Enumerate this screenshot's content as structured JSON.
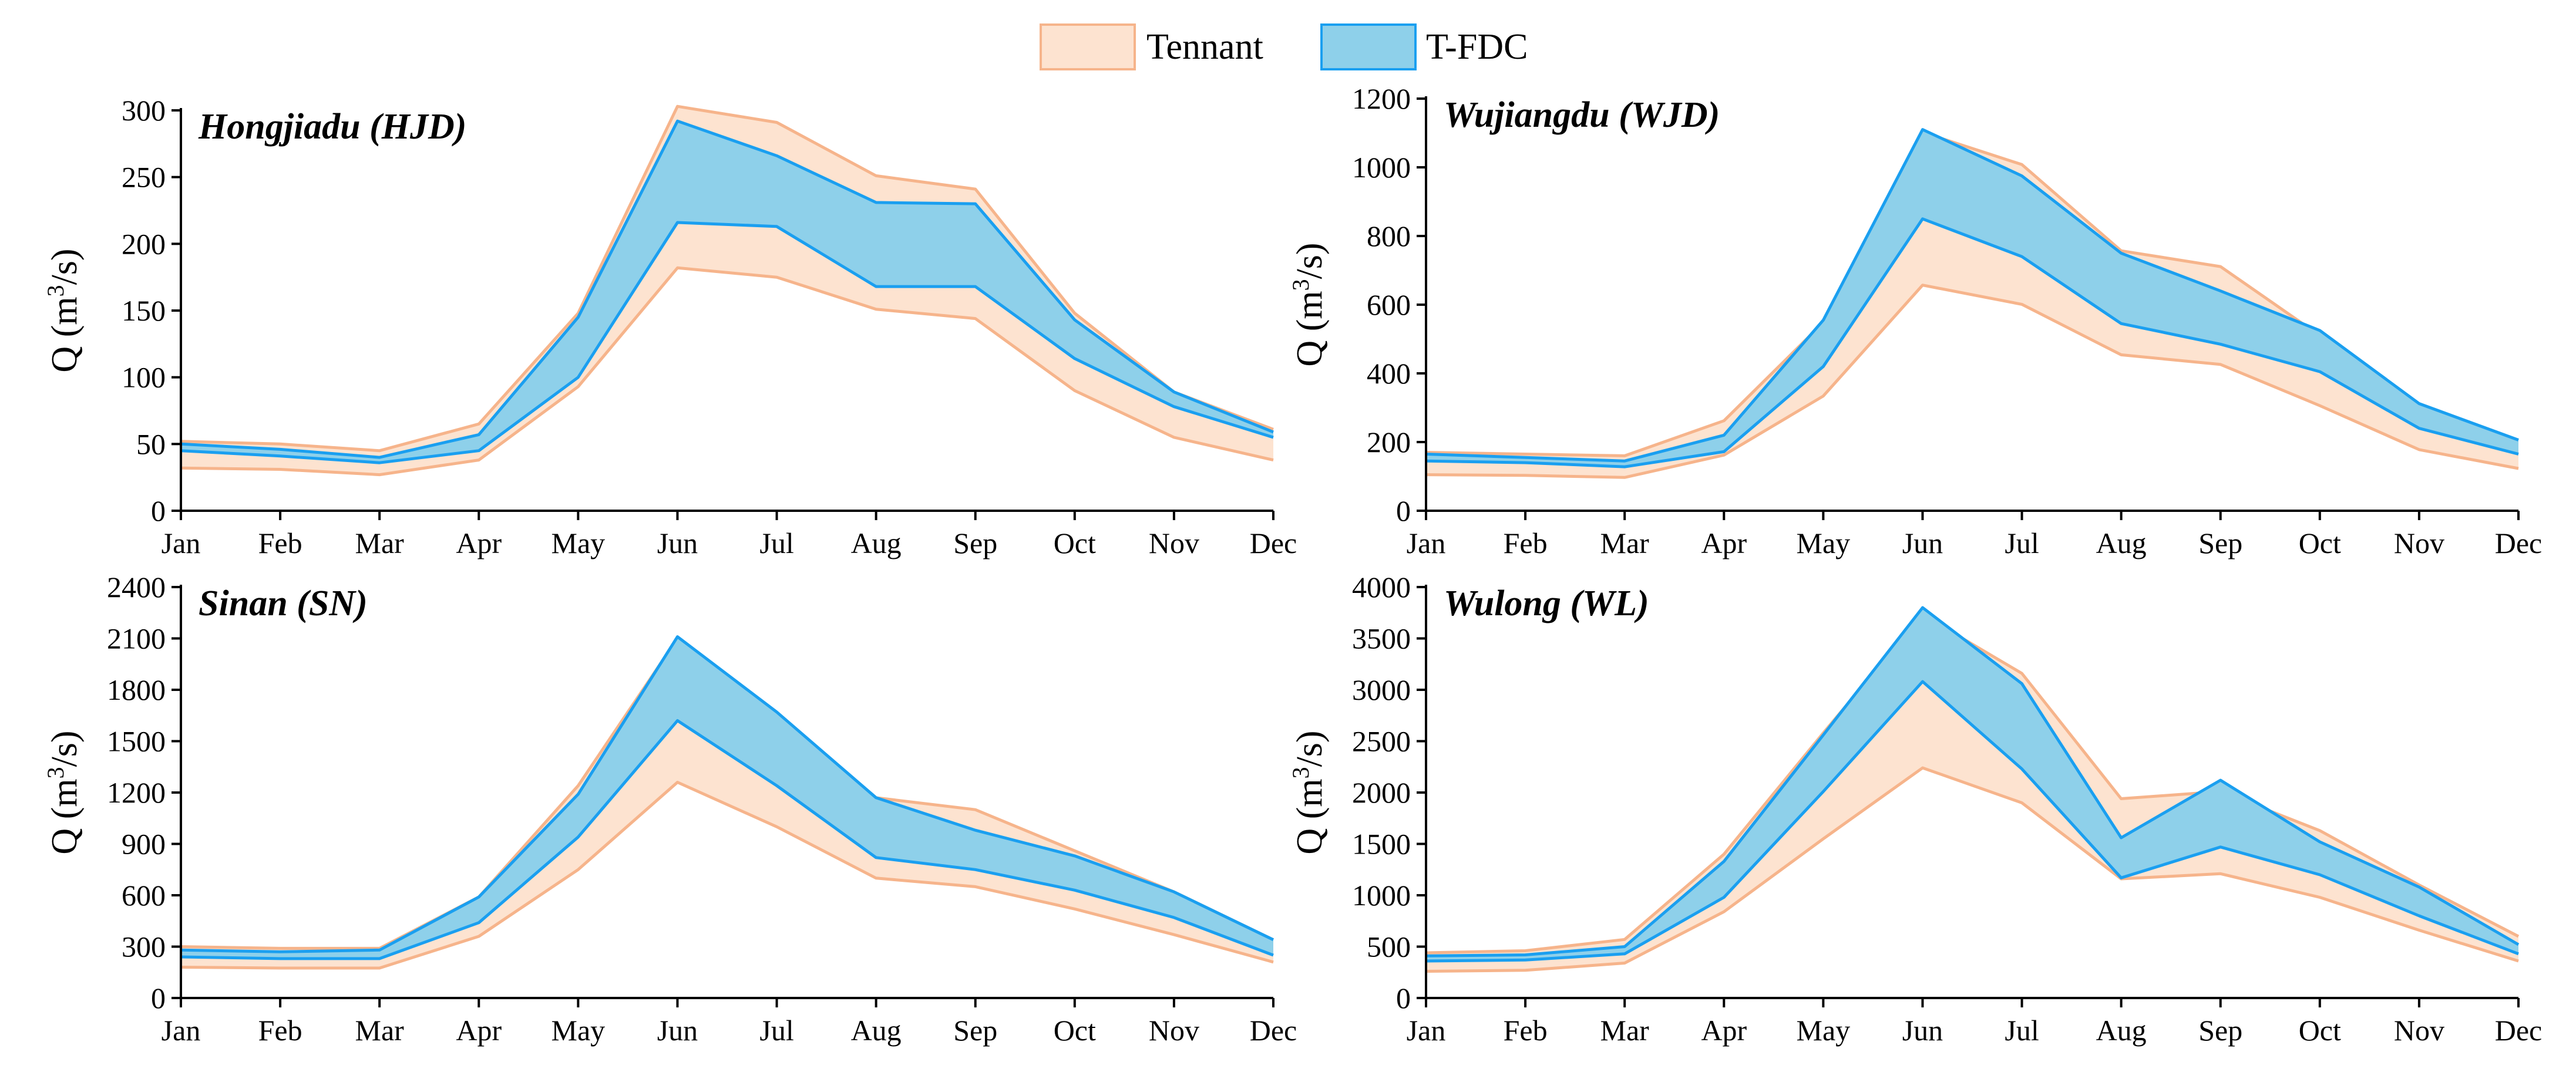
{
  "legend": {
    "items": [
      {
        "label": "Tennant",
        "fill": "#fde3d0",
        "stroke": "#f6b48b"
      },
      {
        "label": "T-FDC",
        "fill": "#8ed0ea",
        "stroke": "#1a9ff0"
      }
    ]
  },
  "chart_data": [
    {
      "type": "area",
      "title": "Hongjiadu (HJD)",
      "ylabel": "Q (m3/s)",
      "ylim": [
        0,
        300
      ],
      "yticks": [
        0,
        50,
        100,
        150,
        200,
        250,
        300
      ],
      "categories": [
        "Jan",
        "Feb",
        "Mar",
        "Apr",
        "May",
        "Jun",
        "Jul",
        "Aug",
        "Sep",
        "Oct",
        "Nov",
        "Dec"
      ],
      "series": [
        {
          "name": "Tennant",
          "lower": [
            32,
            31,
            27,
            38,
            93,
            182,
            175,
            151,
            144,
            90,
            55,
            38
          ],
          "upper": [
            52,
            50,
            45,
            65,
            148,
            303,
            291,
            251,
            241,
            148,
            89,
            61
          ]
        },
        {
          "name": "T-FDC",
          "lower": [
            45,
            41,
            36,
            45,
            100,
            216,
            213,
            168,
            168,
            114,
            78,
            55
          ],
          "upper": [
            50,
            46,
            40,
            57,
            145,
            292,
            266,
            231,
            230,
            143,
            89,
            59
          ]
        }
      ]
    },
    {
      "type": "area",
      "title": "Wujiangdu (WJD)",
      "ylabel": "Q (m3/s)",
      "ylim": [
        0,
        1200
      ],
      "yticks": [
        0,
        200,
        400,
        600,
        800,
        1000,
        1200
      ],
      "categories": [
        "Jan",
        "Feb",
        "Mar",
        "Apr",
        "May",
        "Jun",
        "Jul",
        "Aug",
        "Sep",
        "Oct",
        "Nov",
        "Dec"
      ],
      "series": [
        {
          "name": "Tennant",
          "lower": [
            105,
            103,
            97,
            162,
            334,
            657,
            601,
            454,
            426,
            306,
            178,
            123
          ],
          "upper": [
            170,
            165,
            160,
            262,
            548,
            1102,
            1008,
            757,
            711,
            510,
            297,
            206
          ]
        },
        {
          "name": "T-FDC",
          "lower": [
            145,
            140,
            128,
            172,
            420,
            850,
            740,
            545,
            485,
            405,
            240,
            165
          ],
          "upper": [
            165,
            155,
            145,
            220,
            555,
            1110,
            975,
            750,
            640,
            525,
            312,
            206
          ]
        }
      ]
    },
    {
      "type": "area",
      "title": "Sinan (SN)",
      "ylabel": "Q (m3/s)",
      "ylim": [
        0,
        2400
      ],
      "yticks": [
        0,
        300,
        600,
        900,
        1200,
        1500,
        1800,
        2100,
        2400
      ],
      "categories": [
        "Jan",
        "Feb",
        "Mar",
        "Apr",
        "May",
        "Jun",
        "Jul",
        "Aug",
        "Sep",
        "Oct",
        "Nov",
        "Dec"
      ],
      "series": [
        {
          "name": "Tennant",
          "lower": [
            180,
            175,
            175,
            360,
            750,
            1260,
            1000,
            700,
            650,
            520,
            370,
            210
          ],
          "upper": [
            300,
            290,
            290,
            590,
            1240,
            2100,
            1660,
            1170,
            1100,
            860,
            620,
            340
          ]
        },
        {
          "name": "T-FDC",
          "lower": [
            240,
            230,
            230,
            440,
            940,
            1620,
            1240,
            820,
            750,
            630,
            470,
            250
          ],
          "upper": [
            280,
            270,
            280,
            590,
            1190,
            2110,
            1670,
            1170,
            980,
            830,
            620,
            340
          ]
        }
      ]
    },
    {
      "type": "area",
      "title": "Wulong (WL)",
      "ylabel": "Q (m3/s)",
      "ylim": [
        0,
        4000
      ],
      "yticks": [
        0,
        500,
        1000,
        1500,
        2000,
        2500,
        3000,
        3500,
        4000
      ],
      "categories": [
        "Jan",
        "Feb",
        "Mar",
        "Apr",
        "May",
        "Jun",
        "Jul",
        "Aug",
        "Sep",
        "Oct",
        "Nov",
        "Dec"
      ],
      "series": [
        {
          "name": "Tennant",
          "lower": [
            260,
            270,
            340,
            840,
            1550,
            2240,
            1900,
            1160,
            1210,
            980,
            660,
            360
          ],
          "upper": [
            440,
            460,
            570,
            1400,
            2580,
            3730,
            3160,
            1940,
            2010,
            1630,
            1100,
            600
          ]
        },
        {
          "name": "T-FDC",
          "lower": [
            360,
            370,
            430,
            980,
            2010,
            3080,
            2230,
            1170,
            1470,
            1200,
            800,
            430
          ],
          "upper": [
            410,
            420,
            500,
            1330,
            2560,
            3800,
            3060,
            1560,
            2120,
            1520,
            1080,
            520
          ]
        }
      ]
    }
  ]
}
